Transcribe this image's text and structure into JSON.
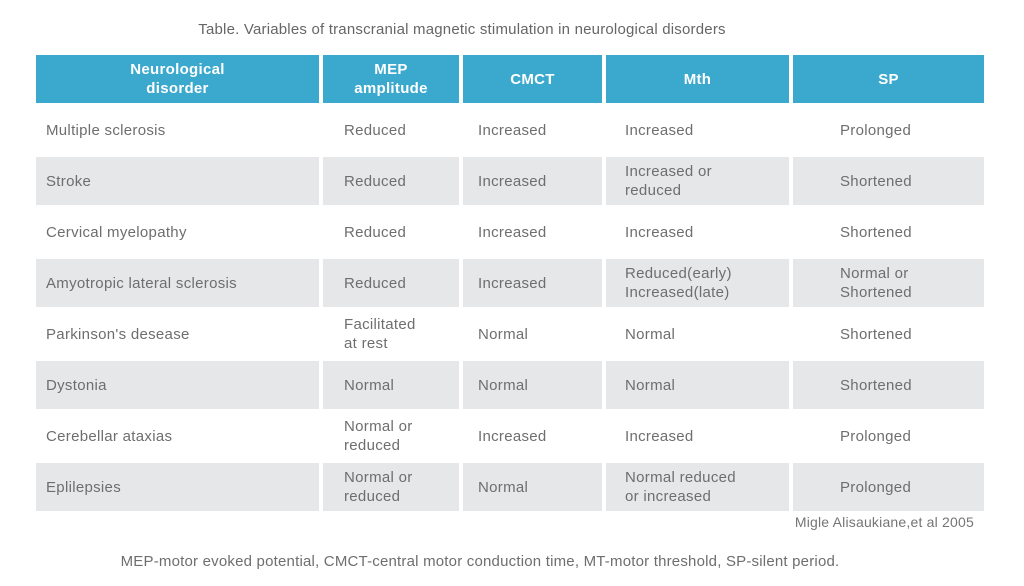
{
  "title": "Table. Variables of transcranial magnetic stimulation in neurological disorders",
  "citation": "Migle Alisaukiane,et al 2005",
  "footnote": "MEP-motor evoked potential, CMCT-central motor conduction time, MT-motor threshold, SP-silent period.",
  "colors": {
    "header_bg": "#3ba9ce",
    "header_text": "#ffffff",
    "row_alt_bg": "#e6e7e8",
    "body_text": "#6e6e6e"
  },
  "table": {
    "headers": [
      "Neurological\ndisorder",
      "MEP\namplitude",
      "CMCT",
      "Mth",
      "SP"
    ],
    "rows": [
      {
        "cells": [
          "Multiple sclerosis",
          "Reduced",
          "Increased",
          "Increased",
          "Prolonged"
        ]
      },
      {
        "cells": [
          "Stroke",
          "Reduced",
          "Increased",
          "Increased or\nreduced",
          "Shortened"
        ]
      },
      {
        "cells": [
          "Cervical myelopathy",
          "Reduced",
          "Increased",
          "Increased",
          "Shortened"
        ]
      },
      {
        "cells": [
          "Amyotropic lateral sclerosis",
          "Reduced",
          "Increased",
          "Reduced(early)\nIncreased(late)",
          "Normal or\nShortened"
        ]
      },
      {
        "cells": [
          "Parkinson's desease",
          "Facilitated\nat rest",
          "Normal",
          "Normal",
          "Shortened"
        ]
      },
      {
        "cells": [
          "Dystonia",
          "Normal",
          "Normal",
          "Normal",
          "Shortened"
        ]
      },
      {
        "cells": [
          "Cerebellar ataxias",
          "Normal or\nreduced",
          "Increased",
          "Increased",
          "Prolonged"
        ]
      },
      {
        "cells": [
          "Eplilepsies",
          "Normal or\nreduced",
          "Normal",
          "Normal reduced\nor increased",
          "Prolonged"
        ]
      }
    ]
  },
  "chart_data": {
    "type": "table",
    "title": "Table. Variables of transcranial magnetic stimulation in neurological disorders",
    "columns": [
      "Neurological disorder",
      "MEP amplitude",
      "CMCT",
      "Mth",
      "SP"
    ],
    "rows": [
      [
        "Multiple sclerosis",
        "Reduced",
        "Increased",
        "Increased",
        "Prolonged"
      ],
      [
        "Stroke",
        "Reduced",
        "Increased",
        "Increased or reduced",
        "Shortened"
      ],
      [
        "Cervical myelopathy",
        "Reduced",
        "Increased",
        "Increased",
        "Shortened"
      ],
      [
        "Amyotropic lateral sclerosis",
        "Reduced",
        "Increased",
        "Reduced(early) Increased(late)",
        "Normal or Shortened"
      ],
      [
        "Parkinson's desease",
        "Facilitated at rest",
        "Normal",
        "Normal",
        "Shortened"
      ],
      [
        "Dystonia",
        "Normal",
        "Normal",
        "Normal",
        "Shortened"
      ],
      [
        "Cerebellar ataxias",
        "Normal or reduced",
        "Increased",
        "Increased",
        "Prolonged"
      ],
      [
        "Eplilepsies",
        "Normal or reduced",
        "Normal",
        "Normal reduced or increased",
        "Prolonged"
      ]
    ],
    "annotations": [
      "Migle Alisaukiane,et al 2005",
      "MEP-motor evoked potential, CMCT-central motor conduction time, MT-motor threshold, SP-silent period."
    ]
  }
}
